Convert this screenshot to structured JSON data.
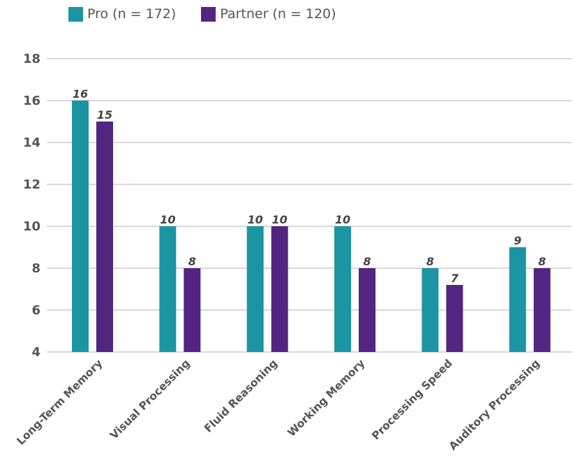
{
  "colors": {
    "series_pro": "#1b95a3",
    "series_partner": "#512581",
    "grid": "#b3b3b3",
    "text": "#555555"
  },
  "legend": {
    "items": [
      {
        "label": "Pro (n = 172)",
        "color": "#1b95a3"
      },
      {
        "label": "Partner (n = 120)",
        "color": "#512581"
      }
    ]
  },
  "chart_data": {
    "type": "bar",
    "title": "",
    "xlabel": "",
    "ylabel": "",
    "ylim": [
      4,
      18
    ],
    "yticks": [
      4,
      6,
      8,
      10,
      12,
      14,
      16,
      18
    ],
    "grid": true,
    "legend_position": "top-left",
    "categories": [
      "Long-Term Memory",
      "Visual Processing",
      "Fluid Reasoning",
      "Working Memory",
      "Processing Speed",
      "Auditory Processing"
    ],
    "series": [
      {
        "name": "Pro (n = 172)",
        "color": "#1b95a3",
        "values": [
          16,
          10,
          10,
          10,
          8,
          9
        ],
        "labels": [
          "16",
          "10",
          "10",
          "10",
          "8",
          "9"
        ]
      },
      {
        "name": "Partner (n = 120)",
        "color": "#512581",
        "values": [
          15,
          8,
          10,
          8,
          7.2,
          8
        ],
        "labels": [
          "15",
          "8",
          "10",
          "8",
          "7",
          "8"
        ]
      }
    ]
  }
}
